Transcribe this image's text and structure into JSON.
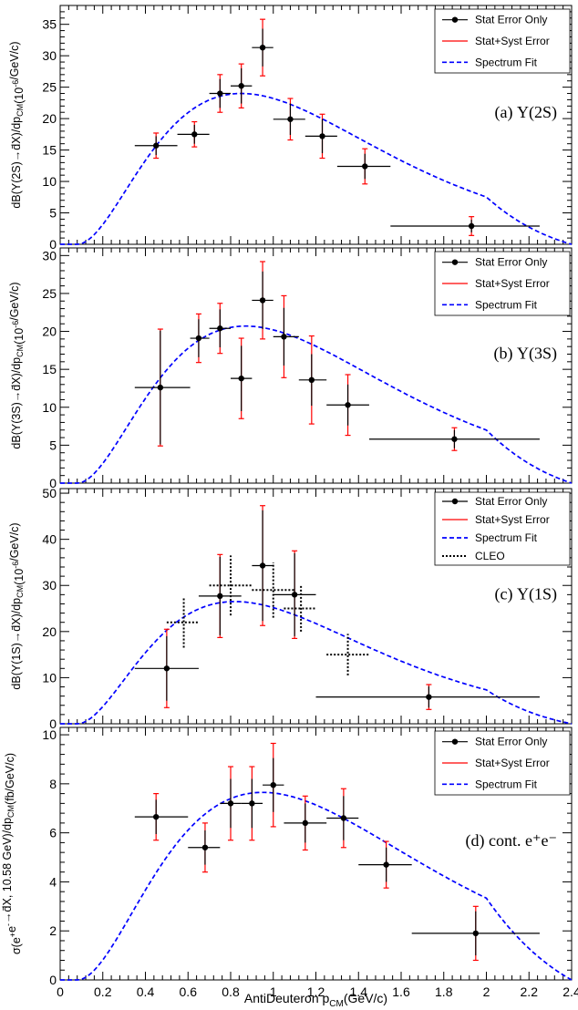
{
  "chart_data": [
    {
      "type": "scatter",
      "panel": "a",
      "annotation": "(a)  Υ(2S)",
      "ylabel": "dB(Υ(2S)→d̄X)/dp_CM(10⁻⁶/GeV/c)",
      "xlim": [
        0,
        2.4
      ],
      "ylim": [
        0,
        38
      ],
      "yticks": [
        0,
        5,
        10,
        15,
        20,
        25,
        30,
        35
      ],
      "legend": [
        "Stat Error Only",
        "Stat+Syst Error",
        "Spectrum Fit"
      ],
      "legend_position": "top-right",
      "points": [
        {
          "x": 0.45,
          "y": 15.7,
          "xlo": 0.35,
          "xhi": 0.55,
          "stat": 1.5,
          "total": 2.0
        },
        {
          "x": 0.63,
          "y": 17.5,
          "xlo": 0.55,
          "xhi": 0.7,
          "stat": 1.5,
          "total": 2.0
        },
        {
          "x": 0.75,
          "y": 24.0,
          "xlo": 0.7,
          "xhi": 0.8,
          "stat": 2.3,
          "total": 3.0
        },
        {
          "x": 0.85,
          "y": 25.2,
          "xlo": 0.8,
          "xhi": 0.9,
          "stat": 2.8,
          "total": 3.5
        },
        {
          "x": 0.95,
          "y": 31.3,
          "xlo": 0.9,
          "xhi": 1.0,
          "stat": 3.0,
          "total": 4.5
        },
        {
          "x": 1.08,
          "y": 19.9,
          "xlo": 1.0,
          "xhi": 1.15,
          "stat": 2.5,
          "total": 3.3
        },
        {
          "x": 1.23,
          "y": 17.2,
          "xlo": 1.15,
          "xhi": 1.3,
          "stat": 2.7,
          "total": 3.5
        },
        {
          "x": 1.43,
          "y": 12.4,
          "xlo": 1.3,
          "xhi": 1.55,
          "stat": 2.0,
          "total": 2.8
        },
        {
          "x": 1.93,
          "y": 2.9,
          "xlo": 1.55,
          "xhi": 2.25,
          "stat": 1.0,
          "total": 1.5
        }
      ],
      "fit": {
        "amplitude": 24.0,
        "peak": 0.85
      }
    },
    {
      "type": "scatter",
      "panel": "b",
      "annotation": "(b)  Υ(3S)",
      "ylabel": "dB(Υ(3S)→d̄X)/dp_CM(10⁻⁶/GeV/c)",
      "xlim": [
        0,
        2.4
      ],
      "ylim": [
        0,
        31
      ],
      "yticks": [
        0,
        5,
        10,
        15,
        20,
        25,
        30
      ],
      "legend": [
        "Stat Error Only",
        "Stat+Syst Error",
        "Spectrum Fit"
      ],
      "legend_position": "top-right",
      "points": [
        {
          "x": 0.47,
          "y": 12.6,
          "xlo": 0.35,
          "xhi": 0.61,
          "stat": 7.5,
          "total": 7.7
        },
        {
          "x": 0.65,
          "y": 19.1,
          "xlo": 0.61,
          "xhi": 0.7,
          "stat": 2.5,
          "total": 3.2
        },
        {
          "x": 0.75,
          "y": 20.4,
          "xlo": 0.7,
          "xhi": 0.8,
          "stat": 2.5,
          "total": 3.3
        },
        {
          "x": 0.85,
          "y": 13.8,
          "xlo": 0.8,
          "xhi": 0.9,
          "stat": 4.3,
          "total": 5.3
        },
        {
          "x": 0.95,
          "y": 24.1,
          "xlo": 0.9,
          "xhi": 1.0,
          "stat": 3.8,
          "total": 5.1
        },
        {
          "x": 1.05,
          "y": 19.3,
          "xlo": 1.0,
          "xhi": 1.12,
          "stat": 3.8,
          "total": 5.4
        },
        {
          "x": 1.18,
          "y": 13.6,
          "xlo": 1.12,
          "xhi": 1.25,
          "stat": 3.4,
          "total": 5.8
        },
        {
          "x": 1.35,
          "y": 10.3,
          "xlo": 1.25,
          "xhi": 1.45,
          "stat": 2.7,
          "total": 4.0
        },
        {
          "x": 1.85,
          "y": 5.8,
          "xlo": 1.45,
          "xhi": 2.25,
          "stat": 1.2,
          "total": 1.5
        }
      ],
      "fit": {
        "amplitude": 20.7,
        "peak": 0.87
      }
    },
    {
      "type": "scatter",
      "panel": "c",
      "annotation": "(c)  Υ(1S)",
      "ylabel": "dB(Υ(1S)→d̄X)/dp_CM(10⁻⁶/GeV/c)",
      "xlim": [
        0,
        2.4
      ],
      "ylim": [
        0,
        51
      ],
      "yticks": [
        0,
        10,
        20,
        30,
        40,
        50
      ],
      "legend": [
        "Stat Error Only",
        "Stat+Syst Error",
        "Spectrum Fit",
        "CLEO"
      ],
      "legend_position": "top-right",
      "points": [
        {
          "x": 0.5,
          "y": 12.0,
          "xlo": 0.35,
          "xhi": 0.65,
          "stat": 7.0,
          "total": 8.5
        },
        {
          "x": 0.75,
          "y": 27.7,
          "xlo": 0.65,
          "xhi": 0.85,
          "stat": 8.5,
          "total": 9.0
        },
        {
          "x": 0.95,
          "y": 34.3,
          "xlo": 0.9,
          "xhi": 1.0,
          "stat": 12.0,
          "total": 13.0
        },
        {
          "x": 1.1,
          "y": 28.0,
          "xlo": 1.0,
          "xhi": 1.2,
          "stat": 9.0,
          "total": 9.5
        },
        {
          "x": 1.73,
          "y": 5.8,
          "xlo": 1.2,
          "xhi": 2.25,
          "stat": 2.3,
          "total": 2.7
        }
      ],
      "cleo": [
        {
          "x": 0.58,
          "y": 22.0,
          "xlo": 0.5,
          "xhi": 0.65,
          "err": 5.5
        },
        {
          "x": 0.8,
          "y": 30.0,
          "xlo": 0.7,
          "xhi": 0.9,
          "err": 6.5
        },
        {
          "x": 1.0,
          "y": 29.0,
          "xlo": 0.9,
          "xhi": 1.1,
          "err": 6.0
        },
        {
          "x": 1.13,
          "y": 25.0,
          "xlo": 1.05,
          "xhi": 1.2,
          "err": 5.0
        },
        {
          "x": 1.35,
          "y": 15.0,
          "xlo": 1.25,
          "xhi": 1.45,
          "err": 4.5
        }
      ],
      "fit": {
        "amplitude": 26.5,
        "peak": 0.82
      }
    },
    {
      "type": "scatter",
      "panel": "d",
      "annotation": "(d)  cont. e⁺e⁻",
      "ylabel": "σ(e⁺e⁻→d̄X, 10.58 GeV)/dp_CM(fb/GeV/c)",
      "xlabel": "AntiDeuteron p_CM(GeV/c)",
      "xlim": [
        0,
        2.4
      ],
      "xticks": [
        0,
        0.2,
        0.4,
        0.6,
        0.8,
        1,
        1.2,
        1.4,
        1.6,
        1.8,
        2,
        2.2,
        2.4
      ],
      "ylim": [
        0,
        10.3
      ],
      "yticks": [
        0,
        2,
        4,
        6,
        8,
        10
      ],
      "legend": [
        "Stat Error Only",
        "Stat+Syst Error",
        "Spectrum Fit"
      ],
      "legend_position": "top-right",
      "points": [
        {
          "x": 0.45,
          "y": 6.65,
          "xlo": 0.35,
          "xhi": 0.6,
          "stat": 0.7,
          "total": 0.95
        },
        {
          "x": 0.68,
          "y": 5.4,
          "xlo": 0.6,
          "xhi": 0.75,
          "stat": 0.7,
          "total": 1.0
        },
        {
          "x": 0.8,
          "y": 7.2,
          "xlo": 0.75,
          "xhi": 0.85,
          "stat": 1.0,
          "total": 1.5
        },
        {
          "x": 0.9,
          "y": 7.2,
          "xlo": 0.85,
          "xhi": 0.95,
          "stat": 1.0,
          "total": 1.5
        },
        {
          "x": 1.0,
          "y": 7.95,
          "xlo": 0.95,
          "xhi": 1.05,
          "stat": 1.1,
          "total": 1.7
        },
        {
          "x": 1.15,
          "y": 6.4,
          "xlo": 1.05,
          "xhi": 1.25,
          "stat": 0.8,
          "total": 1.1
        },
        {
          "x": 1.33,
          "y": 6.6,
          "xlo": 1.25,
          "xhi": 1.4,
          "stat": 0.9,
          "total": 1.2
        },
        {
          "x": 1.53,
          "y": 4.7,
          "xlo": 1.4,
          "xhi": 1.65,
          "stat": 0.7,
          "total": 0.95
        },
        {
          "x": 1.95,
          "y": 1.9,
          "xlo": 1.65,
          "xhi": 2.25,
          "stat": 0.9,
          "total": 1.1
        }
      ],
      "fit": {
        "amplitude": 7.65,
        "peak": 0.95
      }
    }
  ],
  "colors": {
    "stat": "#000000",
    "syst": "#ff0000",
    "fit": "#0000ff",
    "cleo": "#000000"
  }
}
